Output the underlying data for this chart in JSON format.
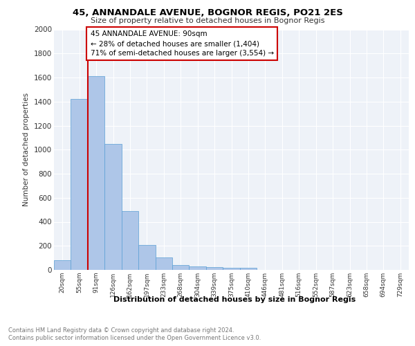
{
  "title": "45, ANNANDALE AVENUE, BOGNOR REGIS, PO21 2ES",
  "subtitle": "Size of property relative to detached houses in Bognor Regis",
  "xlabel": "Distribution of detached houses by size in Bognor Regis",
  "ylabel": "Number of detached properties",
  "categories": [
    "20sqm",
    "55sqm",
    "91sqm",
    "126sqm",
    "162sqm",
    "197sqm",
    "233sqm",
    "268sqm",
    "304sqm",
    "339sqm",
    "375sqm",
    "410sqm",
    "446sqm",
    "481sqm",
    "516sqm",
    "552sqm",
    "587sqm",
    "623sqm",
    "658sqm",
    "694sqm",
    "729sqm"
  ],
  "values": [
    80,
    1420,
    1610,
    1050,
    490,
    205,
    105,
    40,
    28,
    22,
    20,
    20,
    0,
    0,
    0,
    0,
    0,
    0,
    0,
    0,
    0
  ],
  "bar_color": "#aec6e8",
  "bar_edge_color": "#5a9fd4",
  "property_line_idx": 2,
  "property_line_color": "#cc0000",
  "annotation_text": "45 ANNANDALE AVENUE: 90sqm\n← 28% of detached houses are smaller (1,404)\n71% of semi-detached houses are larger (3,554) →",
  "annotation_box_color": "#cc0000",
  "ylim": [
    0,
    2000
  ],
  "yticks": [
    0,
    200,
    400,
    600,
    800,
    1000,
    1200,
    1400,
    1600,
    1800,
    2000
  ],
  "background_color": "#eef2f8",
  "footer_line1": "Contains HM Land Registry data © Crown copyright and database right 2024.",
  "footer_line2": "Contains public sector information licensed under the Open Government Licence v3.0."
}
